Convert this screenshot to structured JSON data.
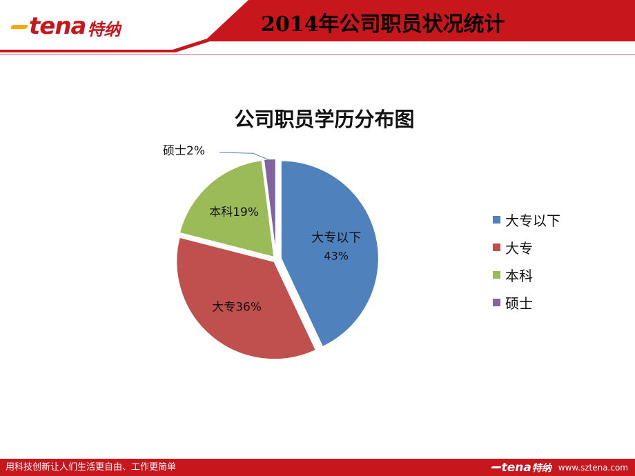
{
  "header": {
    "logo_text": "tena",
    "logo_cn": "特纳",
    "title": "2014年公司职员状况统计"
  },
  "colors": {
    "brand_red": "#c8161d",
    "logo_yellow": "#f2a900"
  },
  "chart_data": {
    "type": "pie",
    "title": "公司职员学历分布图",
    "legend_position": "right",
    "slices": [
      {
        "name": "大专以下",
        "value": 43,
        "label_name": "大专以下",
        "label_value": "43%",
        "color": "#4f81bd"
      },
      {
        "name": "大专",
        "value": 36,
        "label_name": "大专",
        "label_value": "36%",
        "color": "#c0504d"
      },
      {
        "name": "本科",
        "value": 19,
        "label_name": "本科",
        "label_value": "19%",
        "color": "#9bbb59"
      },
      {
        "name": "硕士",
        "value": 2,
        "label_name": "硕士",
        "label_value": "2%",
        "color": "#8064a2"
      }
    ]
  },
  "footer": {
    "slogan": "用科技创新让人们生活更自由、工作更简单",
    "logo_text": "tena",
    "logo_cn": "特纳",
    "url": "www.sztena.com"
  }
}
